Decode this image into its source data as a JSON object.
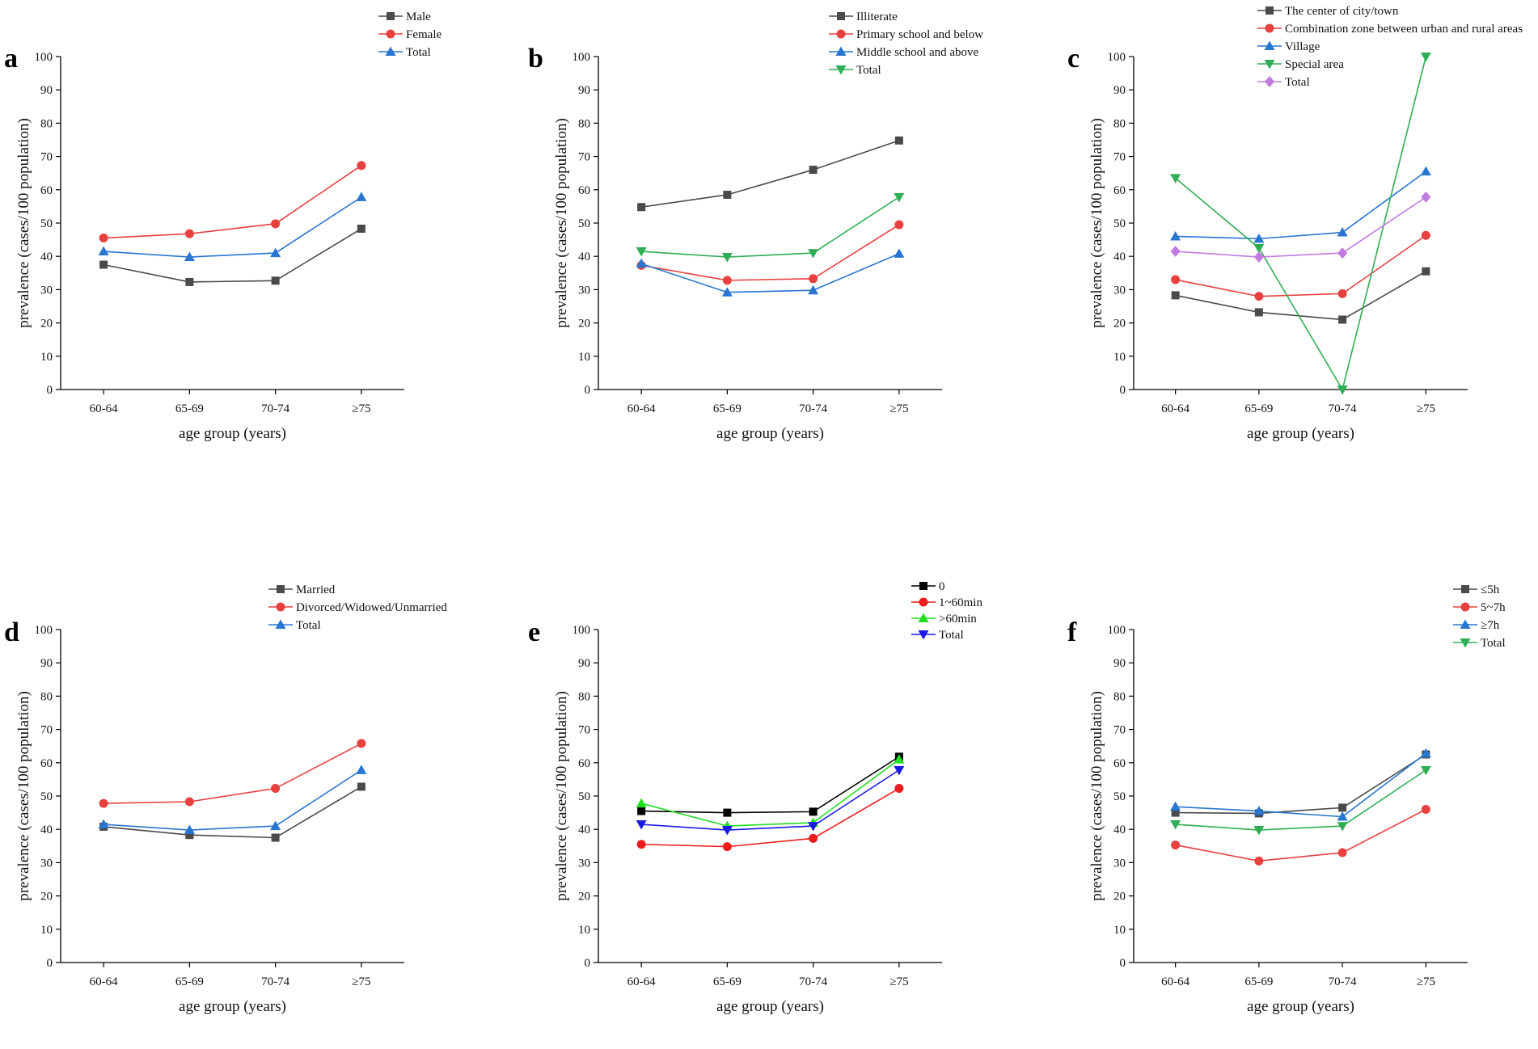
{
  "chart_data": [
    {
      "type": "line",
      "panel": "a",
      "categories": [
        "60-64",
        "65-69",
        "70-74",
        "≥75"
      ],
      "xlabel": "age group (years)",
      "ylabel": "prevalence (cases/100 population)",
      "ylim": [
        0,
        100
      ],
      "yticks": [
        "0",
        "10",
        "20",
        "30",
        "40",
        "50",
        "60",
        "70",
        "80",
        "90",
        "100"
      ],
      "series": [
        {
          "name": "Male",
          "color": "#4a4a4a",
          "marker": "square",
          "values": [
            37.5,
            32.3,
            32.7,
            48.3
          ]
        },
        {
          "name": "Female",
          "color": "#e8403f",
          "marker": "circle",
          "values": [
            45.5,
            46.8,
            49.8,
            67.3
          ]
        },
        {
          "name": "Total",
          "color": "#2876d2",
          "marker": "triangle-up",
          "values": [
            41.5,
            39.8,
            41.0,
            57.8
          ]
        }
      ]
    },
    {
      "type": "line",
      "panel": "b",
      "categories": [
        "60-64",
        "65-69",
        "70-74",
        "≥75"
      ],
      "xlabel": "age group (years)",
      "ylabel": "prevalence (cases/100 population)",
      "ylim": [
        0,
        100
      ],
      "yticks": [
        "0",
        "10",
        "20",
        "30",
        "40",
        "50",
        "60",
        "70",
        "80",
        "90",
        "100"
      ],
      "series": [
        {
          "name": "Illiterate",
          "color": "#4a4a4a",
          "marker": "square",
          "values": [
            54.8,
            58.5,
            66.0,
            74.8
          ]
        },
        {
          "name": "Primary school and below",
          "color": "#e8403f",
          "marker": "circle",
          "values": [
            37.3,
            32.8,
            33.3,
            49.5
          ]
        },
        {
          "name": "Middle school and above",
          "color": "#2876d2",
          "marker": "triangle-up",
          "values": [
            37.8,
            29.2,
            29.8,
            40.8
          ]
        },
        {
          "name": "Total",
          "color": "#2fae55",
          "marker": "triangle-down",
          "values": [
            41.5,
            39.8,
            41.0,
            57.8
          ]
        }
      ]
    },
    {
      "type": "line",
      "panel": "c",
      "categories": [
        "60-64",
        "65-69",
        "70-74",
        "≥75"
      ],
      "xlabel": "age group (years)",
      "ylabel": "prevalence (cases/100 population)",
      "ylim": [
        0,
        100
      ],
      "yticks": [
        "0",
        "10",
        "20",
        "30",
        "40",
        "50",
        "60",
        "70",
        "80",
        "90",
        "100"
      ],
      "series": [
        {
          "name": "The center of city/town",
          "color": "#4a4a4a",
          "marker": "square",
          "values": [
            28.3,
            23.2,
            21.0,
            35.5
          ]
        },
        {
          "name": "Combination zone between urban and rural areas",
          "color": "#e8403f",
          "marker": "circle",
          "values": [
            33.0,
            28.0,
            28.8,
            46.3
          ]
        },
        {
          "name": "Village",
          "color": "#2876d2",
          "marker": "triangle-up",
          "values": [
            46.0,
            45.3,
            47.2,
            65.5
          ]
        },
        {
          "name": "Special area",
          "color": "#2fae55",
          "marker": "triangle-down",
          "values": [
            63.5,
            42.5,
            0.0,
            100.0
          ]
        },
        {
          "name": "Total",
          "color": "#c27be0",
          "marker": "diamond",
          "values": [
            41.5,
            39.8,
            41.0,
            57.8
          ]
        }
      ]
    },
    {
      "type": "line",
      "panel": "d",
      "categories": [
        "60-64",
        "65-69",
        "70-74",
        "≥75"
      ],
      "xlabel": "age group (years)",
      "ylabel": "prevalence (cases/100 population)",
      "ylim": [
        0,
        100
      ],
      "yticks": [
        "0",
        "10",
        "20",
        "30",
        "40",
        "50",
        "60",
        "70",
        "80",
        "90",
        "100"
      ],
      "series": [
        {
          "name": "Married",
          "color": "#4a4a4a",
          "marker": "square",
          "values": [
            40.8,
            38.3,
            37.5,
            52.8
          ]
        },
        {
          "name": "Divorced/Widowed/Unmarried",
          "color": "#e8403f",
          "marker": "circle",
          "values": [
            47.8,
            48.3,
            52.3,
            65.8
          ]
        },
        {
          "name": "Total",
          "color": "#2876d2",
          "marker": "triangle-up",
          "values": [
            41.5,
            39.8,
            41.0,
            57.8
          ]
        }
      ]
    },
    {
      "type": "line",
      "panel": "e",
      "categories": [
        "60-64",
        "65-69",
        "70-74",
        "≥75"
      ],
      "xlabel": "age group (years)",
      "ylabel": "prevalence (cases/100 population)",
      "ylim": [
        0,
        100
      ],
      "yticks": [
        "0",
        "10",
        "20",
        "30",
        "40",
        "50",
        "60",
        "70",
        "80",
        "90",
        "100"
      ],
      "series": [
        {
          "name": "0",
          "color": "#000000",
          "marker": "square",
          "values": [
            45.5,
            45.0,
            45.3,
            61.8
          ]
        },
        {
          "name": "1~60min",
          "color": "#ee1c1c",
          "marker": "circle",
          "values": [
            35.5,
            34.8,
            37.3,
            52.3
          ]
        },
        {
          "name": ">60min",
          "color": "#22dd22",
          "marker": "triangle-up",
          "values": [
            47.8,
            41.0,
            42.0,
            61.0
          ]
        },
        {
          "name": "Total",
          "color": "#1a1ae6",
          "marker": "triangle-down",
          "values": [
            41.5,
            39.8,
            41.0,
            57.8
          ]
        }
      ]
    },
    {
      "type": "line",
      "panel": "f",
      "categories": [
        "60-64",
        "65-69",
        "70-74",
        "≥75"
      ],
      "xlabel": "age group (years)",
      "ylabel": "prevalence (cases/100 population)",
      "ylim": [
        0,
        100
      ],
      "yticks": [
        "0",
        "10",
        "20",
        "30",
        "40",
        "50",
        "60",
        "70",
        "80",
        "90",
        "100"
      ],
      "series": [
        {
          "name": "≤5h",
          "color": "#4a4a4a",
          "marker": "square",
          "values": [
            45.0,
            44.8,
            46.5,
            62.5
          ]
        },
        {
          "name": "5~7h",
          "color": "#e8403f",
          "marker": "circle",
          "values": [
            35.3,
            30.5,
            33.0,
            46.0
          ]
        },
        {
          "name": "≥7h",
          "color": "#2876d2",
          "marker": "triangle-up",
          "values": [
            46.8,
            45.5,
            43.8,
            62.8
          ]
        },
        {
          "name": "Total",
          "color": "#2fae55",
          "marker": "triangle-down",
          "values": [
            41.5,
            39.8,
            41.0,
            57.8
          ]
        }
      ]
    }
  ]
}
